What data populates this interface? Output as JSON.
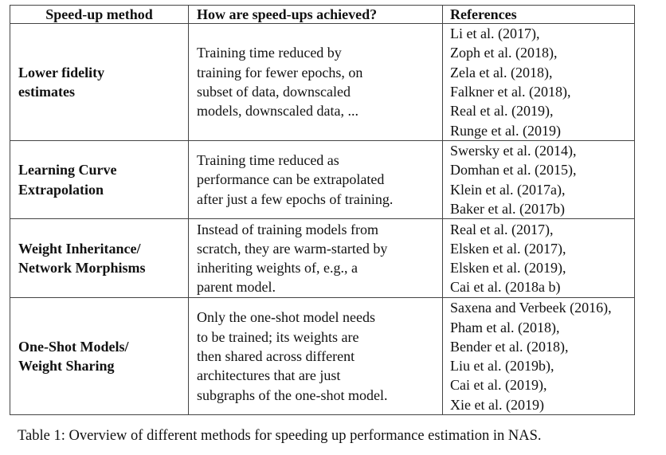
{
  "table": {
    "headers": {
      "method": "Speed-up method",
      "how": "How are speed-ups achieved?",
      "references": "References"
    },
    "rows": [
      {
        "method": [
          "Lower fidelity",
          "estimates"
        ],
        "how": [
          "Training time reduced by",
          "training for fewer epochs, on",
          "subset of data, downscaled",
          "models, downscaled data, ..."
        ],
        "references": [
          "Li et al. (2017),",
          "Zoph et al. (2018),",
          "Zela et al. (2018),",
          "Falkner et al. (2018),",
          "Real et al. (2019),",
          "Runge et al. (2019)"
        ]
      },
      {
        "method": [
          "Learning Curve",
          "Extrapolation"
        ],
        "how": [
          "Training time reduced as",
          "performance can be extrapolated",
          "after just a few epochs of training."
        ],
        "references": [
          "Swersky et al. (2014),",
          "Domhan et al. (2015),",
          "Klein et al. (2017a),",
          "Baker et al. (2017b)"
        ]
      },
      {
        "method": [
          "Weight Inheritance/",
          "Network Morphisms"
        ],
        "how": [
          "Instead of training models from",
          "scratch, they are warm-started by",
          "inheriting weights of, e.g., a",
          "parent model."
        ],
        "references": [
          "Real et al. (2017),",
          "Elsken et al. (2017),",
          "Elsken et al. (2019),",
          "Cai et al. (2018a b)"
        ]
      },
      {
        "method": [
          "One-Shot Models/",
          "Weight Sharing"
        ],
        "how": [
          "Only the one-shot model needs",
          "to be trained; its weights are",
          "then shared across different",
          "architectures that are just",
          "subgraphs of the one-shot model."
        ],
        "references": [
          "Saxena and Verbeek (2016),",
          "Pham et al. (2018),",
          "Bender et al. (2018),",
          "Liu et al. (2019b),",
          "Cai et al. (2019),",
          "Xie et al. (2019)"
        ]
      }
    ]
  },
  "caption": "Table 1: Overview of different methods for speeding up performance estimation in NAS."
}
